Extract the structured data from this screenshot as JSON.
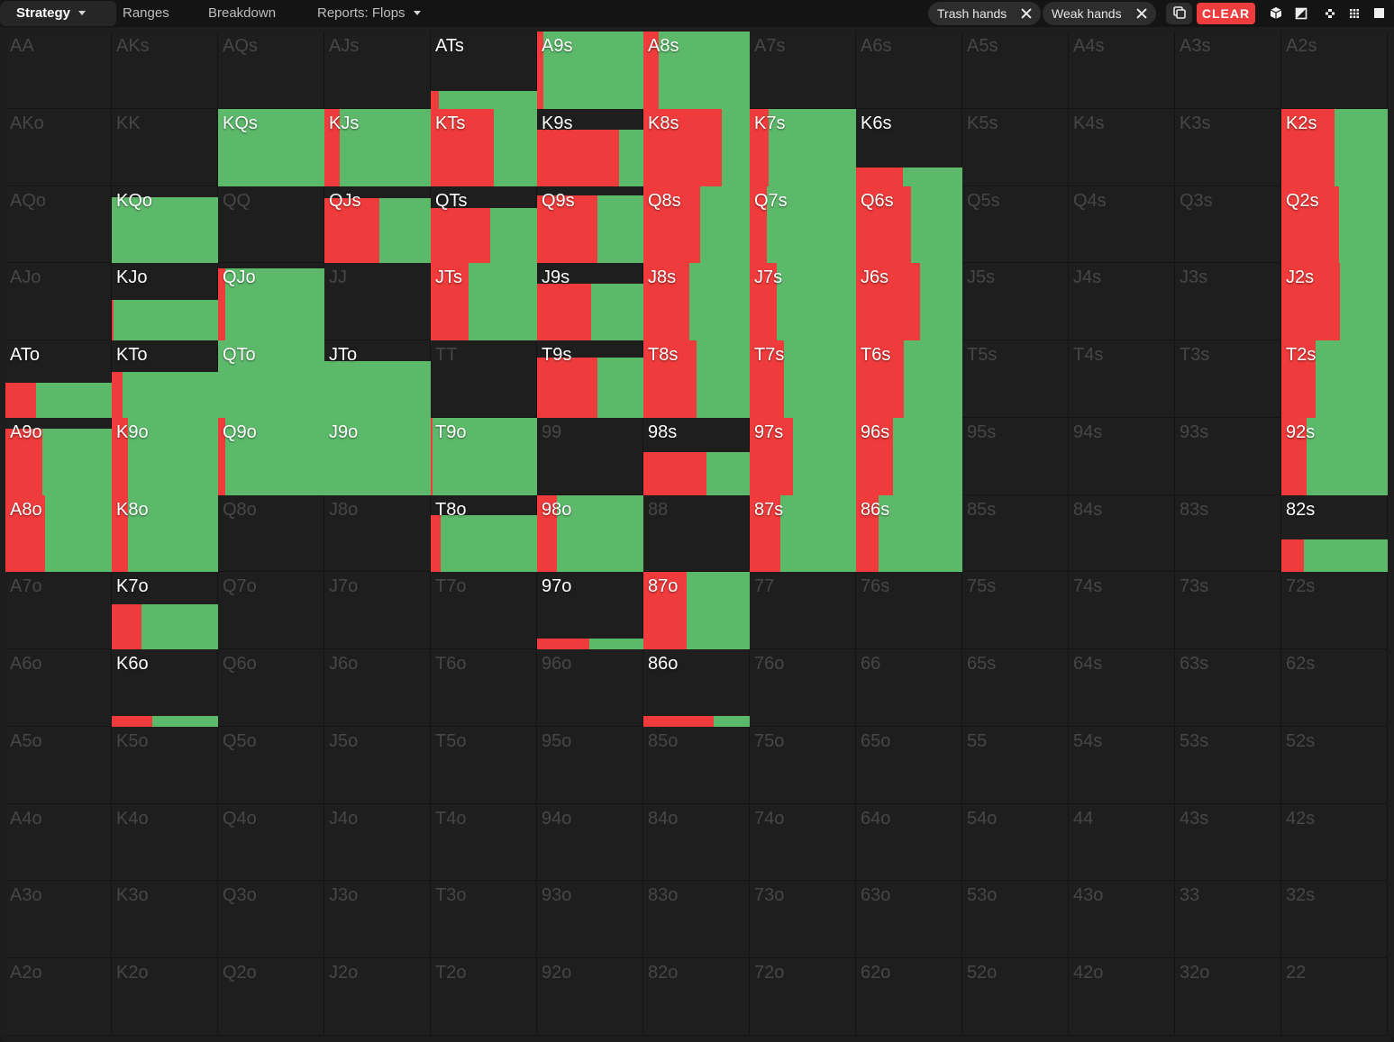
{
  "toolbar": {
    "tabs": [
      {
        "label": "Strategy",
        "active": true,
        "dropdown": true
      },
      {
        "label": "Ranges",
        "active": false,
        "dropdown": false
      },
      {
        "label": "Breakdown",
        "active": false,
        "dropdown": false
      },
      {
        "label": "Reports: Flops",
        "active": false,
        "dropdown": true
      }
    ],
    "filters": [
      {
        "label": "Trash hands",
        "icon": "close-icon"
      },
      {
        "label": "Weak hands",
        "icon": "close-icon"
      }
    ],
    "copy_icon": "copy-icon",
    "clear_label": "CLEAR",
    "view_icons": [
      "cube-icon",
      "half-square-icon",
      "move-icon",
      "grid-icon",
      "square-icon"
    ]
  },
  "colors": {
    "background": "#1d1d1d",
    "raise": "#ef3b3b",
    "call": "#5cb96a",
    "clear_button": "#ef3d3d",
    "inactive_text": "#464646",
    "active_text": "#ffffff"
  },
  "grid": {
    "ranks": [
      "A",
      "K",
      "Q",
      "J",
      "T",
      "9",
      "8",
      "7",
      "6",
      "5",
      "4",
      "3",
      "2"
    ],
    "cells": {
      "ATs": {
        "freq": 0.23,
        "red": 0.08
      },
      "A9s": {
        "freq": 1.0,
        "red": 0.06
      },
      "A8s": {
        "freq": 1.0,
        "red": 0.14
      },
      "KQs": {
        "freq": 1.0,
        "red": 0.0
      },
      "KJs": {
        "freq": 1.0,
        "red": 0.14
      },
      "KTs": {
        "freq": 1.0,
        "red": 0.59
      },
      "K9s": {
        "freq": 0.73,
        "red": 0.77
      },
      "K8s": {
        "freq": 1.0,
        "red": 0.74
      },
      "K7s": {
        "freq": 1.0,
        "red": 0.18
      },
      "K6s": {
        "freq": 0.24,
        "red": 0.44
      },
      "K2s": {
        "freq": 1.0,
        "red": 0.5
      },
      "KQo": {
        "freq": 0.85,
        "red": 0.0
      },
      "QJs": {
        "freq": 0.84,
        "red": 0.52
      },
      "QTs": {
        "freq": 0.71,
        "red": 0.56
      },
      "Q9s": {
        "freq": 0.88,
        "red": 0.57
      },
      "Q8s": {
        "freq": 1.0,
        "red": 0.53
      },
      "Q7s": {
        "freq": 1.0,
        "red": 0.16
      },
      "Q6s": {
        "freq": 1.0,
        "red": 0.52
      },
      "Q2s": {
        "freq": 1.0,
        "red": 0.54
      },
      "KJo": {
        "freq": 0.53,
        "red": 0.02
      },
      "QJo": {
        "freq": 0.93,
        "red": 0.07
      },
      "JTs": {
        "freq": 1.0,
        "red": 0.36
      },
      "J9s": {
        "freq": 0.74,
        "red": 0.51
      },
      "J8s": {
        "freq": 1.0,
        "red": 0.43
      },
      "J7s": {
        "freq": 1.0,
        "red": 0.25
      },
      "J6s": {
        "freq": 1.0,
        "red": 0.6
      },
      "J2s": {
        "freq": 1.0,
        "red": 0.55
      },
      "ATo": {
        "freq": 0.45,
        "red": 0.29
      },
      "KTo": {
        "freq": 0.59,
        "red": 0.1
      },
      "QTo": {
        "freq": 1.0,
        "red": 0.0
      },
      "JTo": {
        "freq": 0.73,
        "red": 0.0
      },
      "T9s": {
        "freq": 0.78,
        "red": 0.57
      },
      "T8s": {
        "freq": 1.0,
        "red": 0.5
      },
      "T7s": {
        "freq": 1.0,
        "red": 0.32
      },
      "T6s": {
        "freq": 1.0,
        "red": 0.45
      },
      "T2s": {
        "freq": 1.0,
        "red": 0.32
      },
      "A9o": {
        "freq": 0.86,
        "red": 0.35
      },
      "K9o": {
        "freq": 1.0,
        "red": 0.15
      },
      "Q9o": {
        "freq": 1.0,
        "red": 0.07
      },
      "J9o": {
        "freq": 1.0,
        "red": 0.0
      },
      "T9o": {
        "freq": 1.0,
        "red": 0.02
      },
      "98s": {
        "freq": 0.56,
        "red": 0.59
      },
      "97s": {
        "freq": 1.0,
        "red": 0.41
      },
      "96s": {
        "freq": 1.0,
        "red": 0.35
      },
      "92s": {
        "freq": 1.0,
        "red": 0.24
      },
      "A8o": {
        "freq": 1.0,
        "red": 0.37
      },
      "K8o": {
        "freq": 1.0,
        "red": 0.15
      },
      "T8o": {
        "freq": 0.74,
        "red": 0.09
      },
      "98o": {
        "freq": 1.0,
        "red": 0.19
      },
      "87s": {
        "freq": 1.0,
        "red": 0.29
      },
      "86s": {
        "freq": 1.0,
        "red": 0.21
      },
      "82s": {
        "freq": 0.43,
        "red": 0.21
      },
      "K7o": {
        "freq": 0.58,
        "red": 0.28
      },
      "97o": {
        "freq": 0.14,
        "red": 0.49
      },
      "87o": {
        "freq": 1.0,
        "red": 0.41
      },
      "K6o": {
        "freq": 0.14,
        "red": 0.38
      },
      "86o": {
        "freq": 0.14,
        "red": 0.66
      }
    }
  }
}
